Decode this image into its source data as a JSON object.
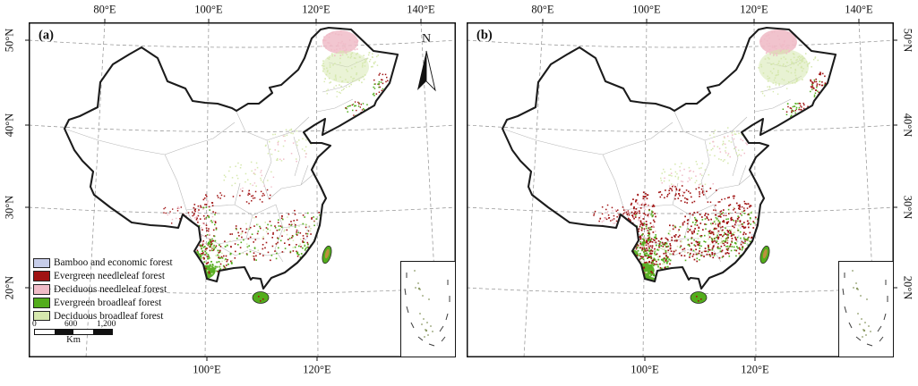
{
  "figure": {
    "panel_labels": {
      "a": "(a)",
      "b": "(b)"
    },
    "axis": {
      "top": [
        "80°E",
        "100°E",
        "120°E",
        "140°E"
      ],
      "bottom": [
        "100°E",
        "120°E"
      ],
      "left": [
        "50°N",
        "40°N",
        "30°N",
        "20°N"
      ],
      "right": [
        "50°N",
        "40°N",
        "30°N",
        "20°N"
      ]
    },
    "north_arrow_label": "N",
    "legend": {
      "items": [
        {
          "key": "bamboo",
          "label": "Bamboo and economic forest",
          "color": "#c7cde9"
        },
        {
          "key": "evn",
          "label": "Evergreen needleleaf forest",
          "color": "#a01313"
        },
        {
          "key": "dcn",
          "label": "Deciduous needleleaf forest",
          "color": "#f0bcc8"
        },
        {
          "key": "evb",
          "label": "Evergreen broadleaf forest",
          "color": "#53ad1c"
        },
        {
          "key": "dcb",
          "label": "Deciduous broadleaf forest",
          "color": "#d6e8ae"
        }
      ]
    },
    "scale_bar": {
      "labels": [
        "0",
        "600",
        "1,200"
      ],
      "unit": "Km"
    },
    "map_colors": {
      "outline": "#1b1b1b",
      "graticule": "#8f8f8f",
      "province": "#b5b5b5",
      "taiwan_center": "#bd8f3e",
      "island_outline": "#2a2a2a"
    },
    "distribution": {
      "a": {
        "seed": 7,
        "blobs": [
          [
            348,
            22,
            20,
            13,
            "dcn",
            0.85,
            0
          ],
          [
            354,
            50,
            26,
            18,
            "dcb",
            0.5,
            0
          ],
          [
            196,
            280,
            13,
            8,
            "evb",
            0.95,
            -15
          ],
          [
            186,
            262,
            7,
            5,
            "evb",
            0.9,
            0
          ]
        ],
        "clusters": [
          [
            348,
            24,
            22,
            14,
            50,
            "dcn",
            1.6
          ],
          [
            354,
            52,
            28,
            20,
            70,
            "dcb",
            1.6
          ],
          [
            377,
            42,
            16,
            10,
            25,
            "dcb",
            1.5
          ],
          [
            394,
            70,
            11,
            14,
            22,
            "evn",
            1.5
          ],
          [
            393,
            75,
            10,
            12,
            16,
            "evb",
            1.5
          ],
          [
            368,
            98,
            15,
            9,
            24,
            "evb",
            1.5
          ],
          [
            368,
            96,
            14,
            9,
            14,
            "evn",
            1.4
          ],
          [
            342,
            72,
            16,
            13,
            18,
            "dcb",
            1.4
          ],
          [
            290,
            138,
            26,
            20,
            36,
            "dcb",
            1.5
          ],
          [
            292,
            140,
            22,
            18,
            12,
            "dcn",
            1.5
          ],
          [
            245,
            172,
            30,
            16,
            30,
            "dcb",
            1.5
          ],
          [
            247,
            178,
            28,
            14,
            14,
            "dcn",
            1.4
          ],
          [
            244,
            194,
            34,
            9,
            30,
            "evn",
            1.5
          ],
          [
            196,
            224,
            14,
            32,
            70,
            "evn",
            1.6
          ],
          [
            198,
            228,
            13,
            30,
            26,
            "dcn",
            1.5
          ],
          [
            199,
            232,
            12,
            28,
            22,
            "evb",
            1.6
          ],
          [
            166,
            215,
            18,
            13,
            18,
            "evn",
            1.4
          ],
          [
            168,
            217,
            16,
            12,
            12,
            "dcn",
            1.4
          ],
          [
            205,
            263,
            24,
            20,
            90,
            "evb",
            1.8
          ],
          [
            207,
            262,
            24,
            20,
            50,
            "evn",
            1.6
          ],
          [
            206,
            266,
            22,
            18,
            24,
            "dcb",
            1.5
          ],
          [
            262,
            243,
            38,
            26,
            55,
            "evn",
            1.6
          ],
          [
            260,
            246,
            36,
            24,
            28,
            "evb",
            1.6
          ],
          [
            258,
            242,
            34,
            24,
            20,
            "dcb",
            1.5
          ],
          [
            305,
            234,
            33,
            28,
            60,
            "evn",
            1.6
          ],
          [
            304,
            236,
            32,
            27,
            36,
            "evb",
            1.6
          ],
          [
            306,
            230,
            30,
            26,
            20,
            "dcb",
            1.5
          ],
          [
            312,
            253,
            16,
            12,
            26,
            "evb",
            1.7
          ],
          [
            318,
            240,
            20,
            14,
            10,
            "bamboo",
            1.5
          ]
        ]
      },
      "b": {
        "seed": 13,
        "blobs": [
          [
            348,
            22,
            21,
            14,
            "dcn",
            0.9,
            0
          ],
          [
            354,
            50,
            28,
            20,
            "dcb",
            0.55,
            0
          ],
          [
            194,
            280,
            16,
            10,
            "evb",
            0.95,
            -15
          ],
          [
            184,
            260,
            8,
            6,
            "evb",
            0.9,
            0
          ],
          [
            206,
            290,
            8,
            5,
            "evb",
            0.9,
            10
          ]
        ],
        "clusters": [
          [
            348,
            24,
            22,
            14,
            55,
            "dcn",
            1.6
          ],
          [
            354,
            52,
            28,
            20,
            75,
            "dcb",
            1.6
          ],
          [
            377,
            42,
            16,
            10,
            25,
            "dcb",
            1.5
          ],
          [
            394,
            70,
            11,
            14,
            34,
            "evn",
            1.6
          ],
          [
            393,
            75,
            10,
            12,
            18,
            "evb",
            1.5
          ],
          [
            368,
            98,
            15,
            9,
            26,
            "evb",
            1.5
          ],
          [
            368,
            96,
            14,
            9,
            20,
            "evn",
            1.5
          ],
          [
            342,
            72,
            16,
            13,
            20,
            "dcb",
            1.4
          ],
          [
            290,
            138,
            26,
            20,
            40,
            "dcb",
            1.5
          ],
          [
            292,
            140,
            22,
            18,
            20,
            "dcn",
            1.5
          ],
          [
            246,
            170,
            32,
            16,
            34,
            "dcb",
            1.5
          ],
          [
            248,
            178,
            30,
            14,
            22,
            "dcn",
            1.5
          ],
          [
            246,
            192,
            36,
            10,
            55,
            "evn",
            1.6
          ],
          [
            196,
            224,
            16,
            34,
            130,
            "evn",
            1.7
          ],
          [
            198,
            228,
            14,
            30,
            40,
            "dcn",
            1.5
          ],
          [
            199,
            232,
            13,
            28,
            35,
            "evb",
            1.6
          ],
          [
            163,
            218,
            22,
            14,
            45,
            "evn",
            1.5
          ],
          [
            166,
            218,
            18,
            12,
            20,
            "dcn",
            1.4
          ],
          [
            204,
            262,
            26,
            22,
            150,
            "evb",
            1.8
          ],
          [
            206,
            260,
            26,
            22,
            110,
            "evn",
            1.7
          ],
          [
            205,
            266,
            24,
            18,
            30,
            "dcb",
            1.5
          ],
          [
            262,
            240,
            40,
            28,
            160,
            "evn",
            1.7
          ],
          [
            260,
            244,
            38,
            26,
            60,
            "evb",
            1.6
          ],
          [
            258,
            240,
            34,
            24,
            28,
            "dcb",
            1.5
          ],
          [
            305,
            232,
            35,
            30,
            150,
            "evn",
            1.7
          ],
          [
            303,
            236,
            33,
            28,
            70,
            "evb",
            1.6
          ],
          [
            306,
            230,
            30,
            26,
            30,
            "dcb",
            1.5
          ],
          [
            312,
            253,
            17,
            13,
            34,
            "evb",
            1.7
          ],
          [
            290,
            205,
            25,
            12,
            30,
            "evn",
            1.5
          ],
          [
            318,
            240,
            20,
            14,
            16,
            "bamboo",
            1.5
          ]
        ]
      }
    }
  }
}
